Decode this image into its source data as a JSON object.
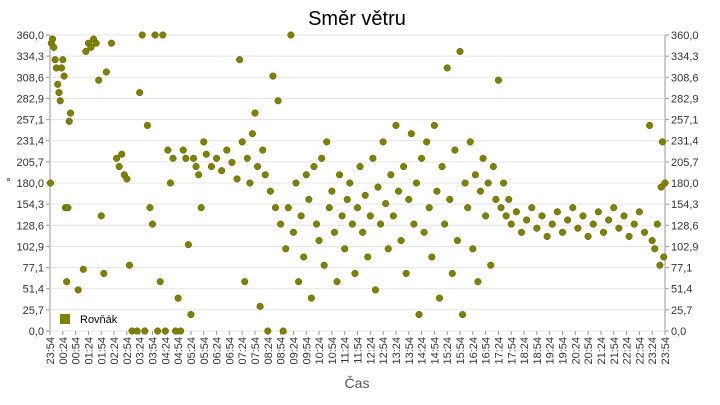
{
  "chart_data": {
    "type": "scatter",
    "title": "Směr větru",
    "xlabel": "Čas",
    "ylabel": "°",
    "xlim": [
      0,
      24
    ],
    "ylim": [
      0,
      360
    ],
    "grid": true,
    "legend": "lower left",
    "marker_color": "#808000",
    "yticks": [
      {
        "value": 0,
        "label": "0,0"
      },
      {
        "value": 25.7,
        "label": "25,7"
      },
      {
        "value": 51.4,
        "label": "51,4"
      },
      {
        "value": 77.1,
        "label": "77,1"
      },
      {
        "value": 102.9,
        "label": "102,9"
      },
      {
        "value": 128.6,
        "label": "128,6"
      },
      {
        "value": 154.3,
        "label": "154,3"
      },
      {
        "value": 180,
        "label": "180,0"
      },
      {
        "value": 205.7,
        "label": "205,7"
      },
      {
        "value": 231.4,
        "label": "231,4"
      },
      {
        "value": 257.1,
        "label": "257,1"
      },
      {
        "value": 282.9,
        "label": "282,9"
      },
      {
        "value": 308.6,
        "label": "308,6"
      },
      {
        "value": 334.3,
        "label": "334,3"
      },
      {
        "value": 360,
        "label": "360,0"
      }
    ],
    "xticks": [
      {
        "value": 0,
        "label": "23:54"
      },
      {
        "value": 0.5,
        "label": "00:24"
      },
      {
        "value": 1,
        "label": "00:54"
      },
      {
        "value": 1.5,
        "label": "01:24"
      },
      {
        "value": 2,
        "label": "01:54"
      },
      {
        "value": 2.5,
        "label": "02:24"
      },
      {
        "value": 3,
        "label": "02:54"
      },
      {
        "value": 3.5,
        "label": "03:24"
      },
      {
        "value": 4,
        "label": "03:54"
      },
      {
        "value": 4.5,
        "label": "04:24"
      },
      {
        "value": 5,
        "label": "04:54"
      },
      {
        "value": 5.5,
        "label": "05:24"
      },
      {
        "value": 6,
        "label": "05:54"
      },
      {
        "value": 6.5,
        "label": "06:24"
      },
      {
        "value": 7,
        "label": "06:54"
      },
      {
        "value": 7.5,
        "label": "07:24"
      },
      {
        "value": 8,
        "label": "07:54"
      },
      {
        "value": 8.5,
        "label": "08:24"
      },
      {
        "value": 9,
        "label": "08:54"
      },
      {
        "value": 9.5,
        "label": "09:24"
      },
      {
        "value": 10,
        "label": "09:54"
      },
      {
        "value": 10.5,
        "label": "10:24"
      },
      {
        "value": 11,
        "label": "10:54"
      },
      {
        "value": 11.5,
        "label": "11:24"
      },
      {
        "value": 12,
        "label": "11:54"
      },
      {
        "value": 12.5,
        "label": "12:24"
      },
      {
        "value": 13,
        "label": "12:54"
      },
      {
        "value": 13.5,
        "label": "13:24"
      },
      {
        "value": 14,
        "label": "13:54"
      },
      {
        "value": 14.5,
        "label": "14:24"
      },
      {
        "value": 15,
        "label": "14:54"
      },
      {
        "value": 15.5,
        "label": "15:24"
      },
      {
        "value": 16,
        "label": "15:54"
      },
      {
        "value": 16.5,
        "label": "16:24"
      },
      {
        "value": 17,
        "label": "16:54"
      },
      {
        "value": 17.5,
        "label": "17:24"
      },
      {
        "value": 18,
        "label": "17:54"
      },
      {
        "value": 18.5,
        "label": "18:24"
      },
      {
        "value": 19,
        "label": "18:54"
      },
      {
        "value": 19.5,
        "label": "19:24"
      },
      {
        "value": 20,
        "label": "19:54"
      },
      {
        "value": 20.5,
        "label": "20:24"
      },
      {
        "value": 21,
        "label": "20:54"
      },
      {
        "value": 21.5,
        "label": "21:24"
      },
      {
        "value": 22,
        "label": "21:54"
      },
      {
        "value": 22.5,
        "label": "22:24"
      },
      {
        "value": 23,
        "label": "22:54"
      },
      {
        "value": 23.5,
        "label": "23:24"
      },
      {
        "value": 24,
        "label": "23:54"
      }
    ],
    "series": [
      {
        "name": "Rovňák",
        "color": "#808000",
        "x": [
          0.02,
          0.05,
          0.1,
          0.15,
          0.2,
          0.25,
          0.3,
          0.35,
          0.4,
          0.45,
          0.5,
          0.55,
          0.6,
          0.65,
          0.7,
          0.75,
          0.8,
          1.1,
          1.3,
          1.4,
          1.5,
          1.6,
          1.7,
          1.8,
          1.9,
          2.0,
          2.1,
          2.2,
          2.4,
          2.6,
          2.7,
          2.8,
          2.9,
          3.0,
          3.1,
          3.2,
          3.4,
          3.5,
          3.6,
          3.7,
          3.8,
          3.9,
          4.0,
          4.1,
          4.2,
          4.3,
          4.4,
          4.5,
          4.6,
          4.7,
          4.8,
          4.9,
          5.0,
          5.1,
          5.2,
          5.3,
          5.4,
          5.5,
          5.6,
          5.7,
          5.8,
          5.9,
          6.0,
          6.1,
          6.3,
          6.5,
          6.7,
          6.9,
          7.1,
          7.3,
          7.4,
          7.5,
          7.6,
          7.7,
          7.8,
          7.9,
          8.0,
          8.1,
          8.2,
          8.3,
          8.4,
          8.5,
          8.6,
          8.7,
          8.8,
          8.9,
          9.0,
          9.1,
          9.2,
          9.3,
          9.4,
          9.5,
          9.6,
          9.7,
          9.8,
          9.9,
          10.0,
          10.1,
          10.2,
          10.3,
          10.4,
          10.5,
          10.6,
          10.7,
          10.8,
          10.9,
          11.0,
          11.1,
          11.2,
          11.3,
          11.4,
          11.5,
          11.6,
          11.7,
          11.8,
          11.9,
          12.0,
          12.1,
          12.2,
          12.3,
          12.4,
          12.5,
          12.6,
          12.7,
          12.8,
          12.9,
          13.0,
          13.1,
          13.2,
          13.3,
          13.4,
          13.5,
          13.6,
          13.7,
          13.8,
          13.9,
          14.0,
          14.1,
          14.2,
          14.3,
          14.4,
          14.5,
          14.6,
          14.7,
          14.8,
          14.9,
          15.0,
          15.1,
          15.2,
          15.3,
          15.4,
          15.5,
          15.6,
          15.7,
          15.8,
          15.9,
          16.0,
          16.1,
          16.2,
          16.3,
          16.4,
          16.5,
          16.6,
          16.7,
          16.8,
          16.9,
          17.0,
          17.1,
          17.2,
          17.3,
          17.4,
          17.5,
          17.6,
          17.7,
          17.8,
          17.9,
          18.0,
          18.2,
          18.4,
          18.6,
          18.8,
          19.0,
          19.2,
          19.4,
          19.6,
          19.8,
          20.0,
          20.2,
          20.4,
          20.6,
          20.8,
          21.0,
          21.2,
          21.4,
          21.6,
          21.8,
          22.0,
          22.2,
          22.4,
          22.6,
          22.8,
          23.0,
          23.2,
          23.4,
          23.5,
          23.6,
          23.7,
          23.8,
          23.85,
          23.9,
          23.95,
          24.0
        ],
        "values": [
          180,
          350,
          355,
          345,
          330,
          320,
          300,
          290,
          280,
          320,
          330,
          310,
          150,
          60,
          150,
          255,
          265,
          50,
          75,
          340,
          350,
          345,
          355,
          350,
          305,
          140,
          70,
          315,
          350,
          210,
          200,
          215,
          190,
          185,
          80,
          0,
          0,
          290,
          360,
          0,
          250,
          150,
          130,
          360,
          0,
          60,
          360,
          0,
          220,
          180,
          210,
          0,
          40,
          0,
          220,
          210,
          105,
          20,
          210,
          200,
          190,
          150,
          230,
          215,
          200,
          210,
          195,
          220,
          205,
          185,
          330,
          230,
          60,
          210,
          180,
          240,
          265,
          200,
          30,
          220,
          190,
          0,
          170,
          310,
          150,
          280,
          130,
          0,
          100,
          150,
          360,
          120,
          180,
          60,
          140,
          90,
          190,
          160,
          40,
          200,
          130,
          110,
          210,
          80,
          230,
          150,
          170,
          120,
          60,
          190,
          140,
          100,
          160,
          180,
          130,
          70,
          150,
          200,
          120,
          165,
          90,
          140,
          210,
          50,
          175,
          130,
          230,
          155,
          100,
          190,
          140,
          250,
          170,
          110,
          200,
          70,
          160,
          240,
          130,
          180,
          20,
          210,
          120,
          230,
          150,
          90,
          250,
          170,
          40,
          200,
          130,
          320,
          160,
          70,
          220,
          110,
          340,
          20,
          180,
          150,
          230,
          100,
          190,
          60,
          170,
          210,
          140,
          180,
          80,
          200,
          160,
          305,
          150,
          180,
          140,
          160,
          130,
          145,
          120,
          135,
          150,
          125,
          140,
          115,
          130,
          145,
          120,
          135,
          150,
          125,
          140,
          115,
          130,
          145,
          120,
          135,
          150,
          125,
          140,
          115,
          130,
          145,
          120,
          250,
          110,
          100,
          130,
          80,
          175,
          230,
          90,
          180
        ]
      }
    ]
  }
}
